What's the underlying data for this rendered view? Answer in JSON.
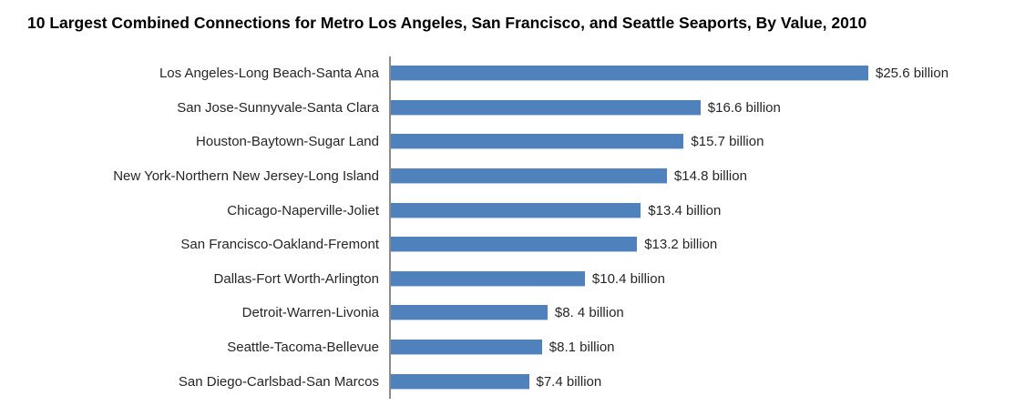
{
  "chart_data": {
    "type": "bar",
    "orientation": "horizontal",
    "title": "10 Largest Combined Connections for Metro Los Angeles, San Francisco, and Seattle Seaports, By Value, 2010",
    "categories": [
      "Los Angeles-Long Beach-Santa Ana",
      "San Jose-Sunnyvale-Santa Clara",
      "Houston-Baytown-Sugar Land",
      "New York-Northern New Jersey-Long Island",
      "Chicago-Naperville-Joliet",
      "San Francisco-Oakland-Fremont",
      "Dallas-Fort Worth-Arlington",
      "Detroit-Warren-Livonia",
      "Seattle-Tacoma-Bellevue",
      "San Diego-Carlsbad-San Marcos"
    ],
    "values": [
      25.6,
      16.6,
      15.7,
      14.8,
      13.4,
      13.2,
      10.4,
      8.4,
      8.1,
      7.4
    ],
    "value_labels": [
      "$25.6 billion",
      "$16.6 billion",
      "$15.7 billion",
      "$14.8 billion",
      "$13.4 billion",
      "$13.2 billion",
      "$10.4 billion",
      "$8. 4 billion",
      "$8.1 billion",
      "$7.4 billion"
    ],
    "unit": "billion USD",
    "xlabel": "",
    "ylabel": "",
    "xlim": [
      0,
      25.6
    ],
    "gridlines": false,
    "legend": false,
    "bar_color": "#4F81BD",
    "axis_color": "#8c8c8c",
    "label_color": "#262626",
    "title_color": "#000000"
  }
}
